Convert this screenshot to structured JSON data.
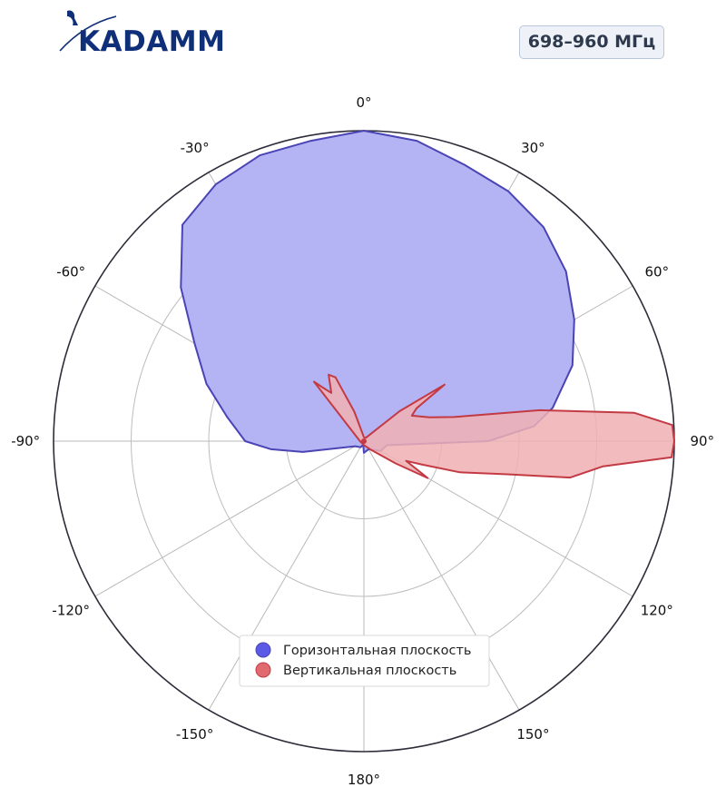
{
  "brand": {
    "logo_text": "KADAMM"
  },
  "badge": {
    "frequency": "698–960 МГц"
  },
  "chart_data": {
    "type": "polar-area",
    "angular_unit": "degrees",
    "zero_direction": "top",
    "angle_direction": "clockwise",
    "angle_ticks": [
      0,
      30,
      60,
      90,
      120,
      150,
      180,
      -150,
      -120,
      -90,
      -60,
      -30
    ],
    "angle_tick_labels": [
      "0°",
      "30°",
      "60°",
      "90°",
      "120°",
      "150°",
      "180°",
      "-150°",
      "-120°",
      "-90°",
      "-60°",
      "-30°"
    ],
    "radial_grid": [
      1,
      2,
      3,
      4
    ],
    "rlim": [
      0,
      4
    ],
    "radial_tick_labels_shown": false,
    "grid": true,
    "legend_position": "bottom-center",
    "series": [
      {
        "name": "Горизонтальная плоскость",
        "color": "#5a5ae6",
        "fill": "#b4b4f4",
        "stroke": "#4a44b4",
        "points": [
          {
            "angle": 0,
            "r": 4.0
          },
          {
            "angle": 10,
            "r": 3.93
          },
          {
            "angle": 20,
            "r": 3.79
          },
          {
            "angle": 30,
            "r": 3.72
          },
          {
            "angle": 40,
            "r": 3.6
          },
          {
            "angle": 50,
            "r": 3.4
          },
          {
            "angle": 60,
            "r": 3.13
          },
          {
            "angle": 70,
            "r": 2.86
          },
          {
            "angle": 80,
            "r": 2.47
          },
          {
            "angle": 85,
            "r": 2.2
          },
          {
            "angle": 90,
            "r": 1.6
          },
          {
            "angle": 95,
            "r": 0.5
          },
          {
            "angle": 100,
            "r": 0.3
          },
          {
            "angle": 120,
            "r": 0.25
          },
          {
            "angle": 150,
            "r": 0.12
          },
          {
            "angle": 180,
            "r": 0.15
          },
          {
            "angle": -170,
            "r": 0.05
          },
          {
            "angle": -150,
            "r": 0.09
          },
          {
            "angle": -120,
            "r": 0.13
          },
          {
            "angle": -100,
            "r": 0.8
          },
          {
            "angle": -95,
            "r": 1.2
          },
          {
            "angle": -90,
            "r": 1.53
          },
          {
            "angle": -80,
            "r": 1.79
          },
          {
            "angle": -70,
            "r": 2.16
          },
          {
            "angle": -60,
            "r": 2.52
          },
          {
            "angle": -50,
            "r": 3.08
          },
          {
            "angle": -40,
            "r": 3.64
          },
          {
            "angle": -30,
            "r": 3.82
          },
          {
            "angle": -20,
            "r": 3.92
          },
          {
            "angle": -10,
            "r": 3.93
          }
        ]
      },
      {
        "name": "Вертикальная плоскость",
        "color": "#e06a70",
        "fill": "#f0b0b4",
        "stroke": "#c33a44",
        "points": [
          {
            "angle": 0,
            "r": 0.05
          },
          {
            "angle": 30,
            "r": 0.05
          },
          {
            "angle": 50,
            "r": 0.6
          },
          {
            "angle": 55,
            "r": 1.27
          },
          {
            "angle": 58,
            "r": 0.8
          },
          {
            "angle": 62,
            "r": 0.7
          },
          {
            "angle": 70,
            "r": 0.9
          },
          {
            "angle": 75,
            "r": 1.2
          },
          {
            "angle": 80,
            "r": 2.3
          },
          {
            "angle": 84,
            "r": 3.5
          },
          {
            "angle": 87,
            "r": 3.98
          },
          {
            "angle": 90,
            "r": 4.0
          },
          {
            "angle": 93,
            "r": 3.97
          },
          {
            "angle": 96,
            "r": 3.1
          },
          {
            "angle": 100,
            "r": 2.7
          },
          {
            "angle": 103,
            "r": 1.9
          },
          {
            "angle": 108,
            "r": 1.3
          },
          {
            "angle": 112,
            "r": 0.8
          },
          {
            "angle": 115,
            "r": 0.6
          },
          {
            "angle": 120,
            "r": 0.95
          },
          {
            "angle": 125,
            "r": 0.5
          },
          {
            "angle": 140,
            "r": 0.15
          },
          {
            "angle": 180,
            "r": 0.05
          },
          {
            "angle": -90,
            "r": 0.05
          },
          {
            "angle": -40,
            "r": 1.0
          },
          {
            "angle": -37,
            "r": 0.85
          },
          {
            "angle": -34,
            "r": 0.75
          },
          {
            "angle": -28,
            "r": 0.97
          },
          {
            "angle": -24,
            "r": 0.9
          },
          {
            "angle": -18,
            "r": 0.4
          },
          {
            "angle": -10,
            "r": 0.1
          }
        ]
      }
    ]
  }
}
